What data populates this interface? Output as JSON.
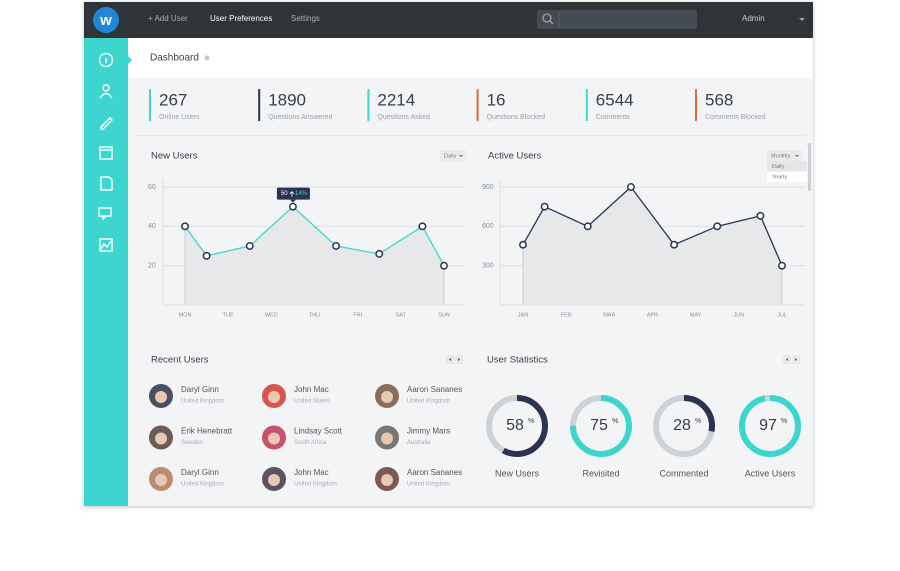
{
  "nav": {
    "items": [
      "+ Add User",
      "User Preferences",
      "Settings"
    ],
    "user": "Admin"
  },
  "header": {
    "title": "Dashboard"
  },
  "stats": [
    {
      "value": 267,
      "label": "Online Users",
      "color": "#3dd6cf"
    },
    {
      "value": 1890,
      "label": "Questions Answered",
      "color": "#2c3350"
    },
    {
      "value": 2214,
      "label": "Questions Asked",
      "color": "#3dd6cf"
    },
    {
      "value": 16,
      "label": "Questions Blocked",
      "color": "#e8643c"
    },
    {
      "value": 6544,
      "label": "Comments",
      "color": "#3dd6cf"
    },
    {
      "value": 568,
      "label": "Comments Blocked",
      "color": "#e8643c"
    }
  ],
  "new_users": {
    "type": "line",
    "title": "New Users",
    "filter": "Daily",
    "x": [
      0,
      0.5,
      1.5,
      2.5,
      3.5,
      4.5,
      5.5,
      6
    ],
    "values": [
      40,
      25,
      30,
      50,
      30,
      26,
      40,
      20
    ],
    "xlim": [
      0,
      6
    ],
    "xticks": [
      {
        "value": 0,
        "label": "MON"
      },
      {
        "value": 1,
        "label": "TUE"
      },
      {
        "value": 2,
        "label": "WED"
      },
      {
        "value": 3,
        "label": "THU"
      },
      {
        "value": 4,
        "label": "FRI"
      },
      {
        "value": 5,
        "label": "SAT"
      },
      {
        "value": 6,
        "label": "SUN"
      }
    ],
    "ylim": [
      0,
      60
    ],
    "yticks": [
      20,
      40,
      60
    ],
    "grid": true,
    "color": "#3dd6cf",
    "tooltip": {
      "value": 50,
      "change": "14%"
    }
  },
  "active_users": {
    "type": "line",
    "title": "Active Users",
    "filter": "Monthly",
    "filter_options": [
      "Daily",
      "Yearly"
    ],
    "x": [
      0,
      0.5,
      1.5,
      2.5,
      3.5,
      4.5,
      5.5,
      6
    ],
    "values": [
      460,
      750,
      600,
      900,
      460,
      600,
      680,
      300
    ],
    "xlim": [
      0,
      6
    ],
    "xticks": [
      {
        "value": 0,
        "label": "JAN"
      },
      {
        "value": 1,
        "label": "FEB"
      },
      {
        "value": 2,
        "label": "MAR"
      },
      {
        "value": 3,
        "label": "APR"
      },
      {
        "value": 4,
        "label": "MAY"
      },
      {
        "value": 5,
        "label": "JUN"
      },
      {
        "value": 6,
        "label": "JUL"
      }
    ],
    "ylim": [
      0,
      900
    ],
    "yticks": [
      300,
      600,
      900
    ],
    "grid": true,
    "color": "#2c3350"
  },
  "recent_users": {
    "title": "Recent Users",
    "users": [
      {
        "name": "Daryl Ginn",
        "country": "United Kingdom"
      },
      {
        "name": "John Mac",
        "country": "United States"
      },
      {
        "name": "Aaron Sananes",
        "country": "United Kingdom"
      },
      {
        "name": "Erik Henebratt",
        "country": "Sweden"
      },
      {
        "name": "Lindsay Scott",
        "country": "South Africa"
      },
      {
        "name": "Jimmy Mars",
        "country": "Australia"
      },
      {
        "name": "Daryl Ginn",
        "country": "United Kingdom"
      },
      {
        "name": "John Mac",
        "country": "United Kingdom"
      },
      {
        "name": "Aaron Sananes",
        "country": "United Kingdom"
      }
    ]
  },
  "user_statistics": {
    "title": "User Statistics",
    "unit": "%",
    "items": [
      {
        "value": 58,
        "label": "New Users",
        "color": "#2c3350"
      },
      {
        "value": 75,
        "label": "Revisited",
        "color": "#3dd6cf"
      },
      {
        "value": 28,
        "label": "Commented",
        "color": "#2c3350"
      },
      {
        "value": 97,
        "label": "Active Users",
        "color": "#3dd6cf"
      }
    ]
  }
}
